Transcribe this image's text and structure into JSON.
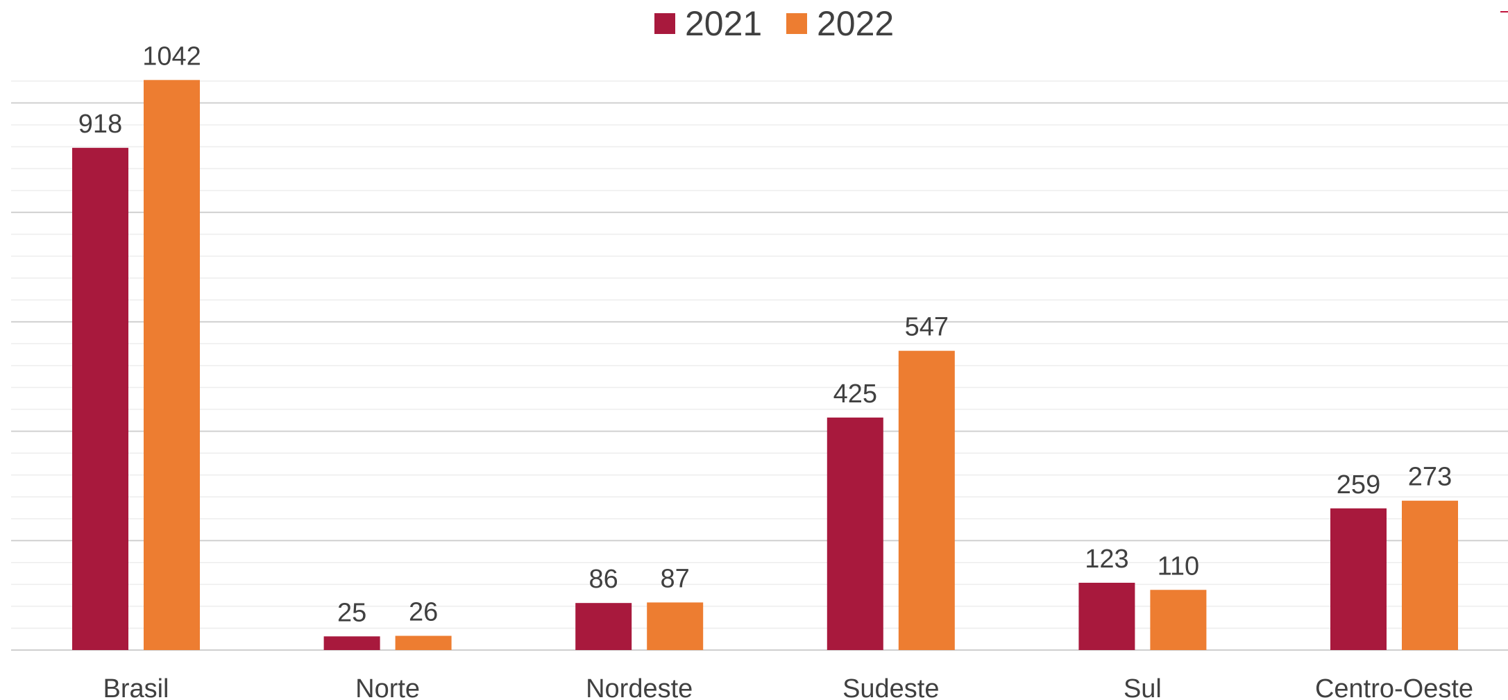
{
  "chart_data": {
    "type": "bar",
    "title": "",
    "xlabel": "",
    "ylabel": "",
    "categories": [
      "Brasil",
      "Norte",
      "Nordeste",
      "Sudeste",
      "Sul",
      "Centro-Oeste"
    ],
    "series": [
      {
        "name": "2021",
        "values": [
          918,
          25,
          86,
          425,
          123,
          259
        ],
        "color": "#A8193D"
      },
      {
        "name": "2022",
        "values": [
          1042,
          26,
          87,
          547,
          110,
          273
        ],
        "color": "#ED7D31"
      }
    ],
    "ylim": [
      0,
      1050
    ],
    "grid": true,
    "y_axis_labels_shown": false,
    "legend_position": "top-center",
    "data_labels": true
  }
}
